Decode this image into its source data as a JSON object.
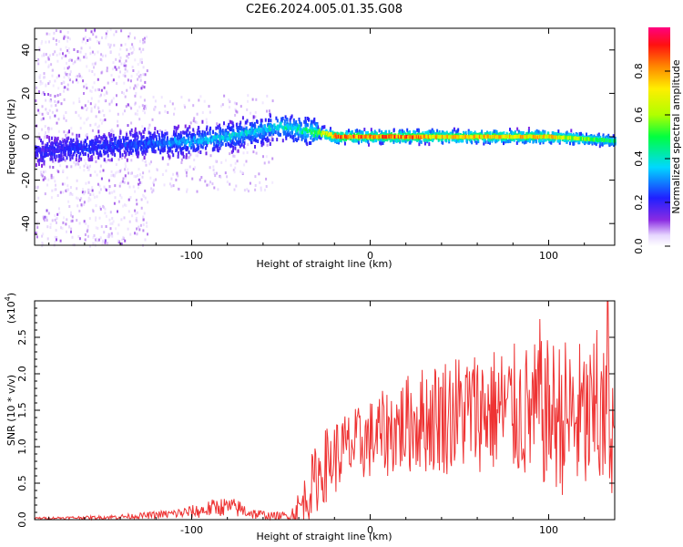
{
  "title": "C2E6.2024.005.01.35.G08",
  "chart_data": [
    {
      "type": "heatmap",
      "xlabel": "Height of straight line (km)",
      "ylabel": "Frequency (Hz)",
      "xlim": [
        -188,
        137
      ],
      "ylim": [
        -50,
        50
      ],
      "xticks": [
        -100,
        0,
        100
      ],
      "yticks": [
        -40,
        -20,
        0,
        20,
        40
      ],
      "ridge": {
        "x": [
          -188,
          -160,
          -140,
          -120,
          -100,
          -80,
          -60,
          -50,
          -40,
          -30,
          -20,
          -10,
          0,
          10,
          20,
          40,
          60,
          80,
          100,
          120,
          137
        ],
        "freq": [
          -7,
          -5,
          -4,
          -3,
          -2,
          0,
          3,
          5,
          3,
          2,
          0,
          0,
          0,
          0,
          0,
          0,
          0,
          0,
          0,
          -1,
          -2
        ],
        "amplitude": [
          0.2,
          0.25,
          0.25,
          0.3,
          0.35,
          0.4,
          0.4,
          0.45,
          0.45,
          0.55,
          0.9,
          0.9,
          0.85,
          0.9,
          0.9,
          0.8,
          0.8,
          0.8,
          0.8,
          0.6,
          0.5
        ]
      },
      "scatter_bands": [
        [
          -188,
          -125
        ]
      ],
      "colorbar": {
        "label": "Normalized spectral amplitude",
        "ticks": [
          "0.0",
          "0.2",
          "0.4",
          "0.6",
          "0.8"
        ],
        "range": [
          0,
          1
        ]
      }
    },
    {
      "type": "line",
      "xlabel": "Height of straight line (km)",
      "ylabel": "SNR (10 * v/v)",
      "ylabel_scale": "(x10",
      "ylabel_exp": "4",
      "color": "#ee3333",
      "xlim": [
        -188,
        137
      ],
      "ylim": [
        0,
        3.0
      ],
      "xticks": [
        -100,
        0,
        100
      ],
      "ytick_labels": [
        "0.0",
        "0.5",
        "1.0",
        "1.5",
        "2.0",
        "2.5"
      ],
      "envelope": {
        "x": [
          -188,
          -150,
          -130,
          -110,
          -95,
          -85,
          -75,
          -65,
          -55,
          -45,
          -38,
          -32,
          -25,
          -15,
          -5,
          5,
          15,
          25,
          35,
          45,
          60,
          75,
          90,
          100,
          110,
          120,
          130,
          137
        ],
        "mean": [
          0.02,
          0.03,
          0.05,
          0.08,
          0.12,
          0.18,
          0.16,
          0.08,
          0.05,
          0.05,
          0.2,
          0.5,
          0.75,
          0.95,
          1.05,
          1.15,
          1.25,
          1.35,
          1.4,
          1.45,
          1.5,
          1.5,
          1.45,
          1.45,
          1.4,
          1.35,
          1.3,
          1.3
        ],
        "spread": [
          0.01,
          0.02,
          0.03,
          0.05,
          0.08,
          0.1,
          0.1,
          0.06,
          0.04,
          0.05,
          0.25,
          0.35,
          0.4,
          0.4,
          0.4,
          0.45,
          0.5,
          0.55,
          0.6,
          0.65,
          0.65,
          0.7,
          0.75,
          0.8,
          0.85,
          0.85,
          0.85,
          0.7
        ]
      },
      "peaks": [
        {
          "x": 133,
          "y": 3.0
        },
        {
          "x": 127,
          "y": 2.6
        },
        {
          "x": 95,
          "y": 2.75
        }
      ]
    }
  ]
}
